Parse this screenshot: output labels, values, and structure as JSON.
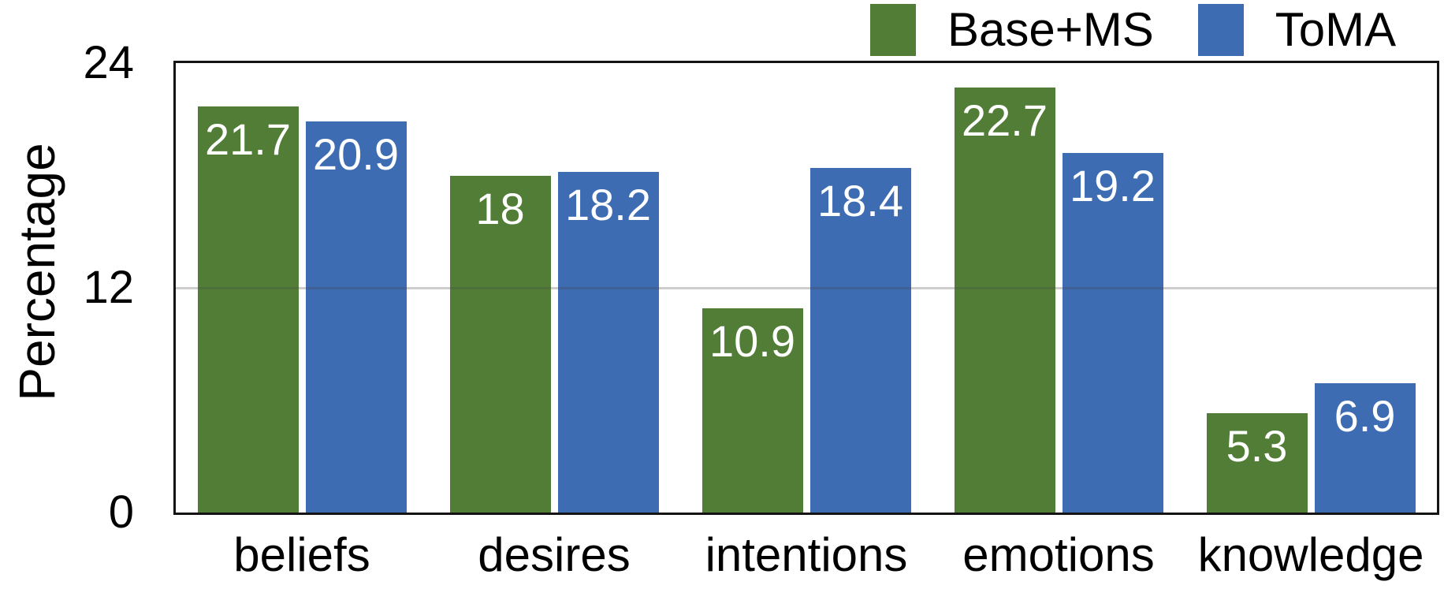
{
  "chart_data": {
    "type": "bar",
    "title": "",
    "xlabel": "",
    "ylabel": "Percentage",
    "categories": [
      "beliefs",
      "desires",
      "intentions",
      "emotions",
      "knowledge"
    ],
    "series": [
      {
        "name": "Base+MS",
        "color": "#527d36",
        "values": [
          21.7,
          18,
          10.9,
          22.7,
          5.3
        ]
      },
      {
        "name": "ToMA",
        "color": "#3e6cb3",
        "values": [
          20.9,
          18.2,
          18.4,
          19.2,
          6.9
        ]
      }
    ],
    "ylim": [
      0,
      24
    ],
    "yticks": [
      0,
      12,
      24
    ],
    "gridlines": [
      12
    ],
    "grid": "horizontal",
    "legend_position": "top-right",
    "value_label_style": "white text inside top of each bar",
    "frame": "full black box around plot area",
    "accent_colors": {
      "green": "#527d36",
      "blue": "#3e6cb3",
      "grid_gray": "#c6c6c6",
      "axis_black": "#141414"
    }
  }
}
